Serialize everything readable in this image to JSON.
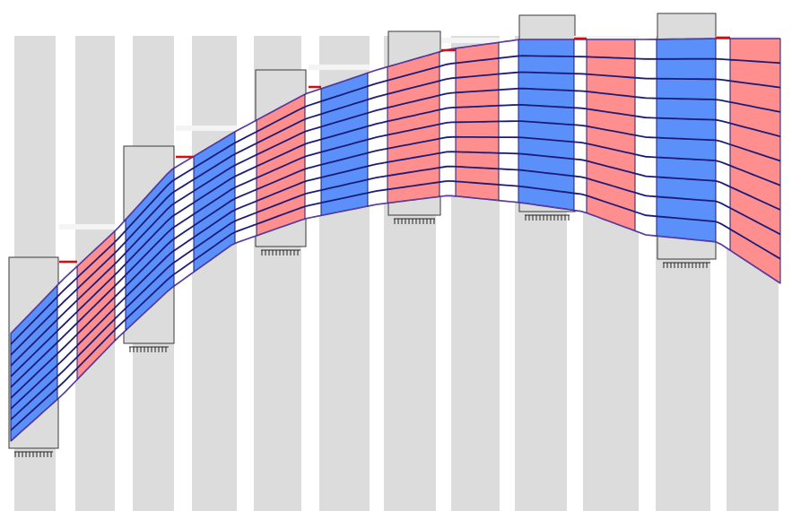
{
  "scene": {
    "description_visible_text": "",
    "colors": {
      "background": "#ffffff",
      "column_fill": "#dcdcdc",
      "column_stroke": "#3a3a3a",
      "compressed_segment": "#5b8ff9",
      "tension_segment": "#ff8f8f",
      "mesh_line": "#1c1c78",
      "outline": "#6a3fb0",
      "gap_marker": "#d01010",
      "support_hatch": "#222222"
    },
    "segment_order": [
      "blue",
      "white",
      "red",
      "white",
      "blue",
      "white",
      "blue",
      "white",
      "red",
      "white",
      "blue",
      "white",
      "red",
      "white",
      "red",
      "white",
      "blue",
      "white",
      "red",
      "white",
      "blue",
      "white",
      "red"
    ],
    "mesh_layer_count": 11
  }
}
